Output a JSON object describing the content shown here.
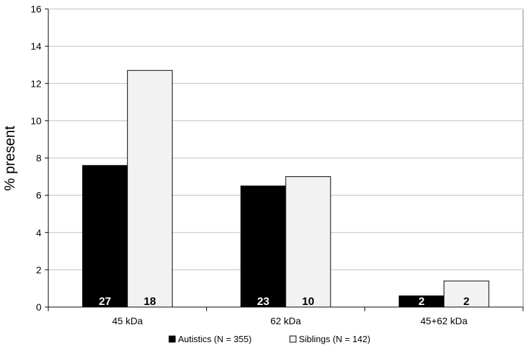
{
  "chart_data": {
    "type": "bar",
    "title": "",
    "xlabel": "",
    "ylabel": "% present",
    "ylim": [
      0,
      16
    ],
    "yticks": [
      0,
      2,
      4,
      6,
      8,
      10,
      12,
      14,
      16
    ],
    "grid": true,
    "legend_position": "bottom-center",
    "categories": [
      "45 kDa",
      "62 kDa",
      "45+62 kDa"
    ],
    "series": [
      {
        "name": "Autistics (N = 355)",
        "color": "#000000",
        "values": [
          7.6,
          6.5,
          0.6
        ],
        "labels": [
          "27",
          "23",
          "2"
        ]
      },
      {
        "name": "Siblings (N = 142)",
        "color": "#f2f2f2",
        "values": [
          12.7,
          7.0,
          1.4
        ],
        "labels": [
          "18",
          "10",
          "2"
        ]
      }
    ]
  }
}
